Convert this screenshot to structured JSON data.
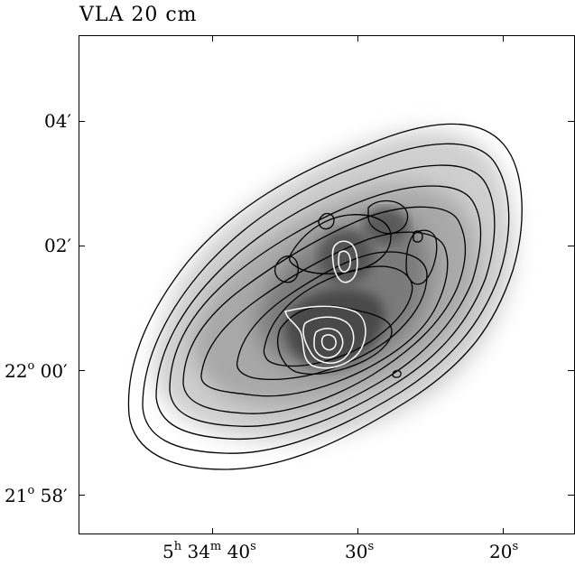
{
  "title": "VLA 20 cm",
  "y_ticks": [
    {
      "deg": "",
      "min": "04′"
    },
    {
      "deg": "",
      "min": "02′"
    },
    {
      "deg": "22",
      "min": "00′"
    },
    {
      "deg": "21",
      "min": "58′"
    }
  ],
  "x_ticks": [
    {
      "h": "5",
      "m": "34",
      "s": "40"
    },
    {
      "h": "",
      "m": "",
      "s": "30"
    },
    {
      "h": "",
      "m": "",
      "s": "20"
    }
  ],
  "x_unit_symbols": {
    "h": "h",
    "m": "m",
    "s": "s"
  },
  "y_unit_symbol": "o",
  "colors": {
    "contour_dark": "#000000",
    "contour_light": "#ffffff",
    "background": "#ffffff"
  }
}
